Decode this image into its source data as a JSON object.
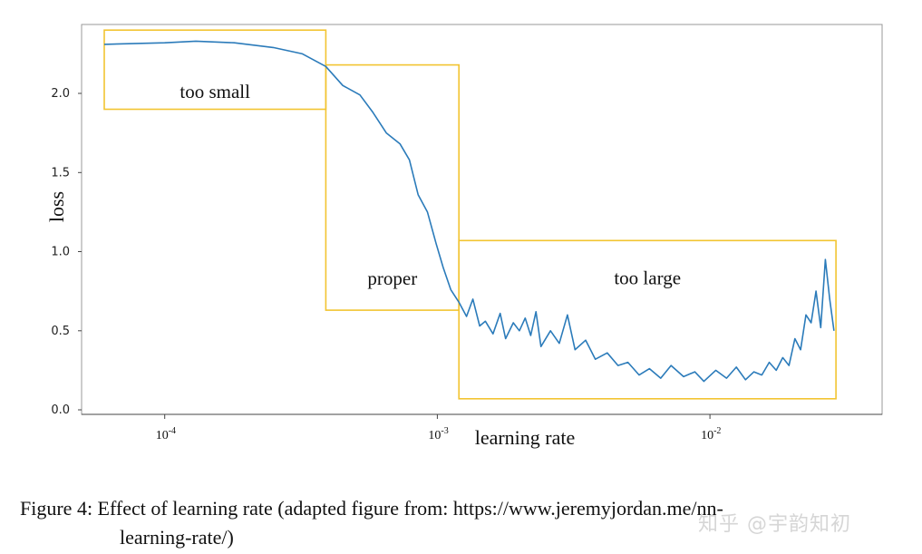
{
  "colors": {
    "line": "#2b7bba",
    "box": "#f2c431",
    "axis": "#444444",
    "frame": "#999999"
  },
  "chart_data": {
    "type": "line",
    "title": "",
    "xlabel": "learning rate",
    "ylabel": "loss",
    "xscale": "log",
    "xlim": [
      6e-05,
      0.032
    ],
    "ylim": [
      0.0,
      2.42
    ],
    "yticks": [
      0.0,
      0.5,
      1.0,
      1.5,
      2.0
    ],
    "ytick_labels": [
      "0.0",
      "0.5",
      "1.0",
      "1.5",
      "2.0"
    ],
    "xticks": [
      {
        "value": 0.0001,
        "base": "10",
        "exp": "-4"
      },
      {
        "value": 0.001,
        "base": "10",
        "exp": "-3"
      },
      {
        "value": 0.01,
        "base": "10",
        "exp": "-2"
      }
    ],
    "regions": [
      {
        "label": "too small",
        "x_range": [
          6e-05,
          0.00039
        ],
        "y_range": [
          1.9,
          2.4
        ]
      },
      {
        "label": "proper",
        "x_range": [
          0.00039,
          0.0012
        ],
        "y_range": [
          0.63,
          2.18
        ]
      },
      {
        "label": "too large",
        "x_range": [
          0.0012,
          0.029
        ],
        "y_range": [
          0.07,
          1.07
        ]
      }
    ],
    "series": [
      {
        "name": "loss",
        "x": [
          6e-05,
          0.0001,
          0.00013,
          0.00018,
          0.00025,
          0.00032,
          0.00039,
          0.00045,
          0.00052,
          0.00058,
          0.00065,
          0.00073,
          0.00079,
          0.00085,
          0.00092,
          0.00099,
          0.00105,
          0.00112,
          0.0012,
          0.00128,
          0.00135,
          0.00143,
          0.0015,
          0.0016,
          0.0017,
          0.00178,
          0.0019,
          0.002,
          0.0021,
          0.0022,
          0.0023,
          0.0024,
          0.0026,
          0.0028,
          0.003,
          0.0032,
          0.0035,
          0.0038,
          0.0042,
          0.0046,
          0.005,
          0.0055,
          0.006,
          0.0066,
          0.0072,
          0.008,
          0.0088,
          0.0095,
          0.0105,
          0.0115,
          0.0125,
          0.0135,
          0.0145,
          0.0155,
          0.0165,
          0.0175,
          0.0185,
          0.0195,
          0.0205,
          0.0215,
          0.0225,
          0.0235,
          0.0245,
          0.0255,
          0.0265,
          0.0275,
          0.0285
        ],
        "values": [
          2.31,
          2.32,
          2.33,
          2.32,
          2.29,
          2.25,
          2.17,
          2.05,
          1.99,
          1.88,
          1.75,
          1.68,
          1.58,
          1.36,
          1.25,
          1.05,
          0.9,
          0.76,
          0.68,
          0.59,
          0.7,
          0.53,
          0.56,
          0.48,
          0.61,
          0.45,
          0.55,
          0.5,
          0.58,
          0.47,
          0.62,
          0.4,
          0.5,
          0.42,
          0.6,
          0.38,
          0.44,
          0.32,
          0.36,
          0.28,
          0.3,
          0.22,
          0.26,
          0.2,
          0.28,
          0.21,
          0.24,
          0.18,
          0.25,
          0.2,
          0.27,
          0.19,
          0.24,
          0.22,
          0.3,
          0.25,
          0.33,
          0.28,
          0.45,
          0.38,
          0.6,
          0.55,
          0.75,
          0.52,
          0.95,
          0.7,
          0.5
        ]
      }
    ]
  },
  "caption": {
    "line1": "Figure 4: Effect of learning rate (adapted figure from: https://www.jeremyjordan.me/nn-",
    "line2": "learning-rate/)"
  },
  "watermark": "知乎 @宇韵知初"
}
